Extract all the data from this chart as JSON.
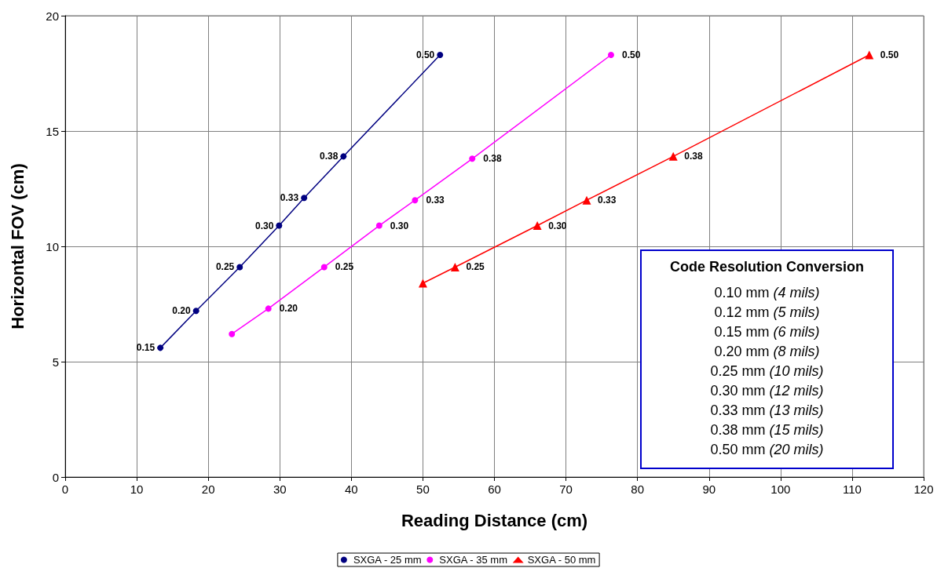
{
  "chart_data": {
    "type": "line",
    "xlabel": "Reading Distance (cm)",
    "ylabel": "Horizontal FOV (cm)",
    "xlim": [
      0,
      120
    ],
    "xticks": [
      0,
      10,
      20,
      30,
      40,
      50,
      60,
      70,
      80,
      90,
      100,
      110,
      120
    ],
    "ylim": [
      0,
      20
    ],
    "yticks": [
      0,
      5,
      10,
      15,
      20
    ],
    "grid": true,
    "legend": "bottom",
    "line_style": "solid",
    "series": [
      {
        "name": "SXGA - 25 mm",
        "color": "#000080",
        "marker": "circle",
        "x": [
          13.3,
          18.3,
          24.4,
          29.9,
          33.4,
          38.9,
          52.4
        ],
        "values": [
          5.6,
          7.2,
          9.1,
          10.9,
          12.1,
          13.9,
          18.3
        ]
      },
      {
        "name": "SXGA - 35 mm",
        "color": "#ff00ff",
        "marker": "circle",
        "x": [
          23.3,
          28.4,
          36.2,
          43.9,
          48.9,
          56.9,
          76.3
        ],
        "values": [
          6.2,
          7.3,
          9.1,
          10.9,
          12.0,
          13.8,
          18.3
        ]
      },
      {
        "name": "SXGA - 50 mm",
        "color": "#ff0000",
        "marker": "triangle",
        "x": [
          50.0,
          54.5,
          66.0,
          72.9,
          85.0,
          112.4
        ],
        "values": [
          8.4,
          9.1,
          10.9,
          12.0,
          13.9,
          18.3
        ]
      }
    ],
    "annotations": [
      "Code Resolution Conversion",
      "0.10 mm (4 mils)",
      "0.12 mm (5 mils)",
      "0.15 mm (6 mils)",
      "0.20 mm (8 mils)",
      "0.25 mm (10 mils)",
      "0.30 mm (12 mils)",
      "0.33 mm (13 mils)",
      "0.38 mm (15 mils)",
      "0.50 mm (20 mils)",
      {
        "text": "0.15",
        "x": 13.3,
        "y": 5.6
      },
      {
        "text": "0.20",
        "x": 18.3,
        "y": 7.2
      },
      {
        "text": "0.25",
        "x": 24.4,
        "y": 9.1
      },
      {
        "text": "0.30",
        "x": 29.9,
        "y": 10.9
      },
      {
        "text": "0.33",
        "x": 33.4,
        "y": 12.1
      },
      {
        "text": "0.38",
        "x": 38.9,
        "y": 13.9
      },
      {
        "text": "0.50",
        "x": 52.4,
        "y": 18.3
      },
      {
        "text": "0.20",
        "x": 28.4,
        "y": 7.3
      },
      {
        "text": "0.25",
        "x": 36.2,
        "y": 9.1
      },
      {
        "text": "0.30",
        "x": 43.9,
        "y": 10.9
      },
      {
        "text": "0.33",
        "x": 48.9,
        "y": 12.0
      },
      {
        "text": "0.38",
        "x": 56.9,
        "y": 13.8
      },
      {
        "text": "0.50",
        "x": 76.3,
        "y": 18.3
      },
      {
        "text": "0.25",
        "x": 54.5,
        "y": 9.1
      },
      {
        "text": "0.30",
        "x": 66.0,
        "y": 10.9
      },
      {
        "text": "0.33",
        "x": 72.9,
        "y": 12.0
      },
      {
        "text": "0.38",
        "x": 85.0,
        "y": 13.9
      },
      {
        "text": "0.50",
        "x": 112.4,
        "y": 18.3
      }
    ]
  }
}
